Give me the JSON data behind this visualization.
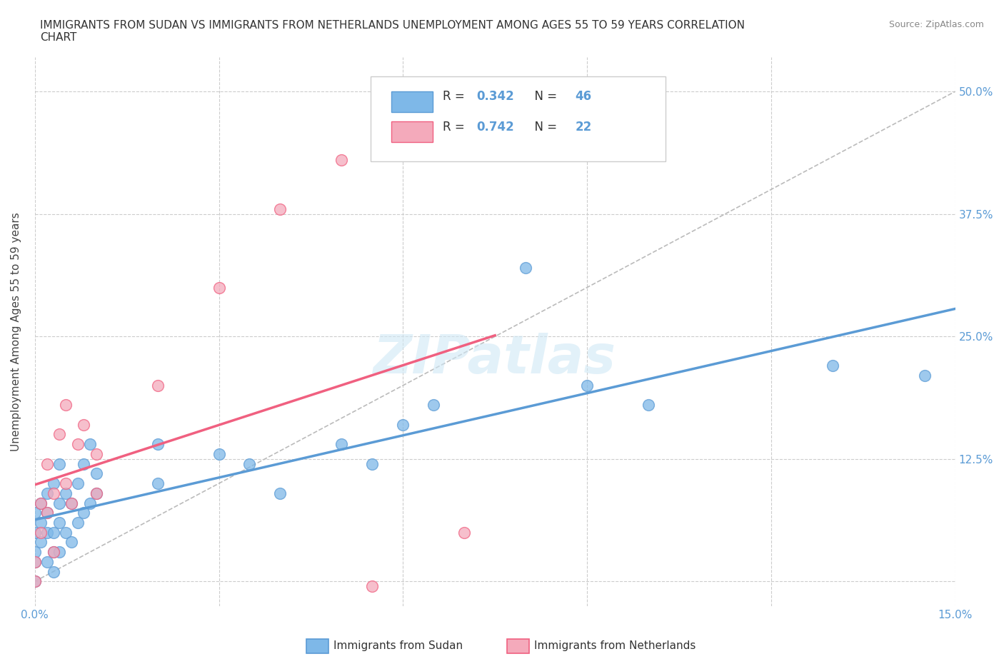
{
  "title": "IMMIGRANTS FROM SUDAN VS IMMIGRANTS FROM NETHERLANDS UNEMPLOYMENT AMONG AGES 55 TO 59 YEARS CORRELATION\nCHART",
  "source": "Source: ZipAtlas.com",
  "ylabel": "Unemployment Among Ages 55 to 59 years",
  "xlim": [
    0.0,
    0.15
  ],
  "ylim": [
    -0.025,
    0.535
  ],
  "sudan_color": "#7EB8E8",
  "netherlands_color": "#F4AABB",
  "sudan_line_color": "#5B9BD5",
  "netherlands_line_color": "#F06080",
  "sudan_R": 0.342,
  "sudan_N": 46,
  "netherlands_R": 0.742,
  "netherlands_N": 22,
  "background_color": "#FFFFFF",
  "grid_color": "#CCCCCC",
  "watermark_color": "#D0E8F5",
  "ref_line_color": "#BBBBBB",
  "tick_color": "#5B9BD5",
  "ylabel_color": "#444444",
  "title_color": "#333333",
  "source_color": "#888888",
  "legend_text_color": "#333333",
  "sudan_x": [
    0.0,
    0.0,
    0.0,
    0.0,
    0.0,
    0.001,
    0.001,
    0.001,
    0.002,
    0.002,
    0.002,
    0.002,
    0.003,
    0.003,
    0.003,
    0.003,
    0.004,
    0.004,
    0.004,
    0.004,
    0.005,
    0.005,
    0.006,
    0.006,
    0.007,
    0.007,
    0.008,
    0.008,
    0.009,
    0.009,
    0.01,
    0.01,
    0.02,
    0.02,
    0.03,
    0.035,
    0.04,
    0.05,
    0.055,
    0.06,
    0.065,
    0.08,
    0.09,
    0.1,
    0.13,
    0.145
  ],
  "sudan_y": [
    0.0,
    0.02,
    0.03,
    0.05,
    0.07,
    0.04,
    0.06,
    0.08,
    0.02,
    0.05,
    0.07,
    0.09,
    0.01,
    0.03,
    0.05,
    0.1,
    0.03,
    0.06,
    0.08,
    0.12,
    0.05,
    0.09,
    0.04,
    0.08,
    0.06,
    0.1,
    0.07,
    0.12,
    0.08,
    0.14,
    0.09,
    0.11,
    0.1,
    0.14,
    0.13,
    0.12,
    0.09,
    0.14,
    0.12,
    0.16,
    0.18,
    0.32,
    0.2,
    0.18,
    0.22,
    0.21
  ],
  "netherlands_x": [
    0.0,
    0.0,
    0.001,
    0.001,
    0.002,
    0.002,
    0.003,
    0.003,
    0.004,
    0.005,
    0.005,
    0.006,
    0.007,
    0.008,
    0.01,
    0.01,
    0.02,
    0.03,
    0.04,
    0.05,
    0.07,
    0.055
  ],
  "netherlands_y": [
    0.0,
    0.02,
    0.05,
    0.08,
    0.07,
    0.12,
    0.03,
    0.09,
    0.15,
    0.1,
    0.18,
    0.08,
    0.14,
    0.16,
    0.09,
    0.13,
    0.2,
    0.3,
    0.38,
    0.43,
    0.05,
    -0.005
  ]
}
